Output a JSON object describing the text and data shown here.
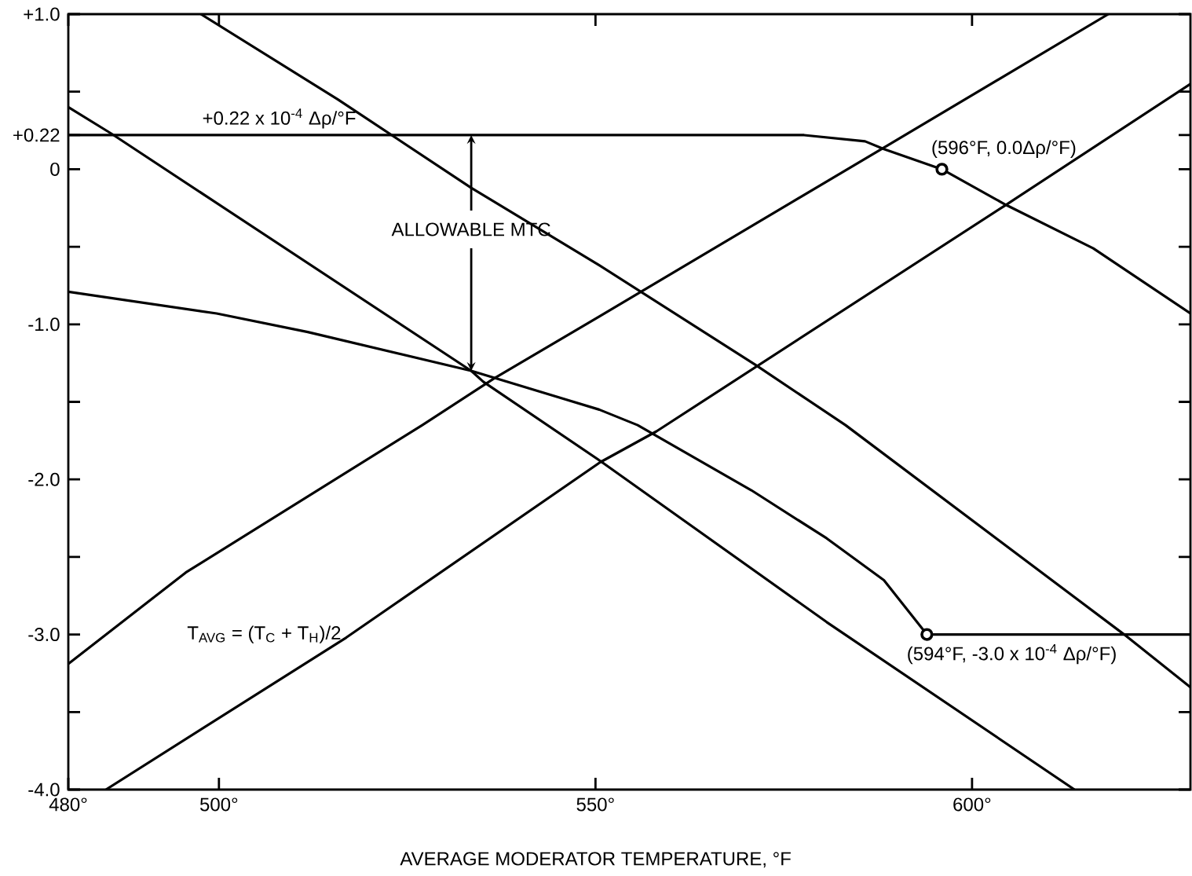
{
  "chart_data": {
    "type": "line",
    "xlabel": "AVERAGE MODERATOR TEMPERATURE, °F",
    "xlim": [
      480,
      629
    ],
    "ylim": [
      -4,
      1
    ],
    "xticks": [
      {
        "value": 480,
        "label": "480°"
      },
      {
        "value": 500,
        "label": "500°"
      },
      {
        "value": 550,
        "label": "550°"
      },
      {
        "value": 600,
        "label": "600°"
      }
    ],
    "yticks": [
      {
        "value": 1,
        "label": "+1.0"
      },
      {
        "value": 0.5,
        "label": null
      },
      {
        "value": 0.22,
        "label": "+0.22"
      },
      0,
      {
        "value": -0.5,
        "label": null
      },
      {
        "value": -1,
        "label": "-1.0"
      },
      {
        "value": -1.5,
        "label": null
      },
      {
        "value": -2,
        "label": "-2.0"
      },
      {
        "value": -2.5,
        "label": null
      },
      {
        "value": -3,
        "label": "-3.0"
      },
      {
        "value": -3.5,
        "label": null
      },
      {
        "value": -4,
        "label": "-4.0"
      }
    ],
    "line_style": "solid",
    "marker": "none",
    "series": [
      {
        "color": "#000000",
        "x": [
          497.6,
          515.8,
          533.5,
          550.2,
          571.2,
          583.2,
          620.2,
          629
        ],
        "values": [
          1.0,
          0.45,
          -0.12,
          -0.61,
          -1.26,
          -1.65,
          -3.0,
          -3.34
        ]
      },
      {
        "color": "#000000",
        "x": [
          480,
          485.7,
          533.5,
          535.1,
          550.6,
          580.7,
          613.6
        ],
        "values": [
          0.4,
          0.23,
          -1.3,
          -1.37,
          -1.88,
          -2.92,
          -4.0
        ]
      },
      {
        "color": "#000000",
        "x": [
          480,
          495.6,
          527.0,
          536.5,
          550.5,
          588.3,
          618.1
        ],
        "values": [
          -3.19,
          -2.6,
          -1.65,
          -1.35,
          -0.95,
          0.14,
          1.0
        ]
      },
      {
        "color": "#000000",
        "x": [
          485.0,
          516.9,
          550.6,
          558.1,
          604.5,
          629
        ],
        "values": [
          -4.0,
          -3.02,
          -1.89,
          -1.69,
          -0.23,
          0.55
        ]
      },
      {
        "color": "#000000",
        "x": [
          480,
          577.7,
          585.8,
          588.3,
          596,
          604.5,
          616.1,
          629
        ],
        "values": [
          0.22,
          0.22,
          0.18,
          0.13,
          0.0,
          -0.23,
          -0.51,
          -0.93
        ]
      },
      {
        "color": "#000000",
        "x": [
          480,
          499.7,
          511.8,
          533.5,
          550.5,
          555.6,
          570.7,
          580.7,
          588.3,
          594,
          629
        ],
        "values": [
          -0.79,
          -0.93,
          -1.05,
          -1.3,
          -1.55,
          -1.65,
          -2.07,
          -2.38,
          -2.65,
          -3.0,
          -3.0
        ]
      },
      {
        "type": "scatter",
        "color": "#000000",
        "marker": "circle",
        "x": [
          596,
          594
        ],
        "values": [
          0.0,
          -3.0
        ]
      }
    ],
    "annotations": [
      {
        "text": "+0.22 x 10$^{-4}$ Δρ/°F",
        "x": 508,
        "y": 0.22
      },
      {
        "text": "ALLOWABLE MTC",
        "x": 533.5,
        "y": -1.3
      },
      {
        "text": "(596°F, 0.0Δρ/°F)",
        "x": 596,
        "y": 0.0
      },
      {
        "text": "(594°F, -3.0 x 10$^{-4}$ Δρ/°F)",
        "x": 594,
        "y": -3.0
      },
      "T$_{AVG}$ = (T$_{C}$ + T$_{H}$)/2"
    ]
  }
}
